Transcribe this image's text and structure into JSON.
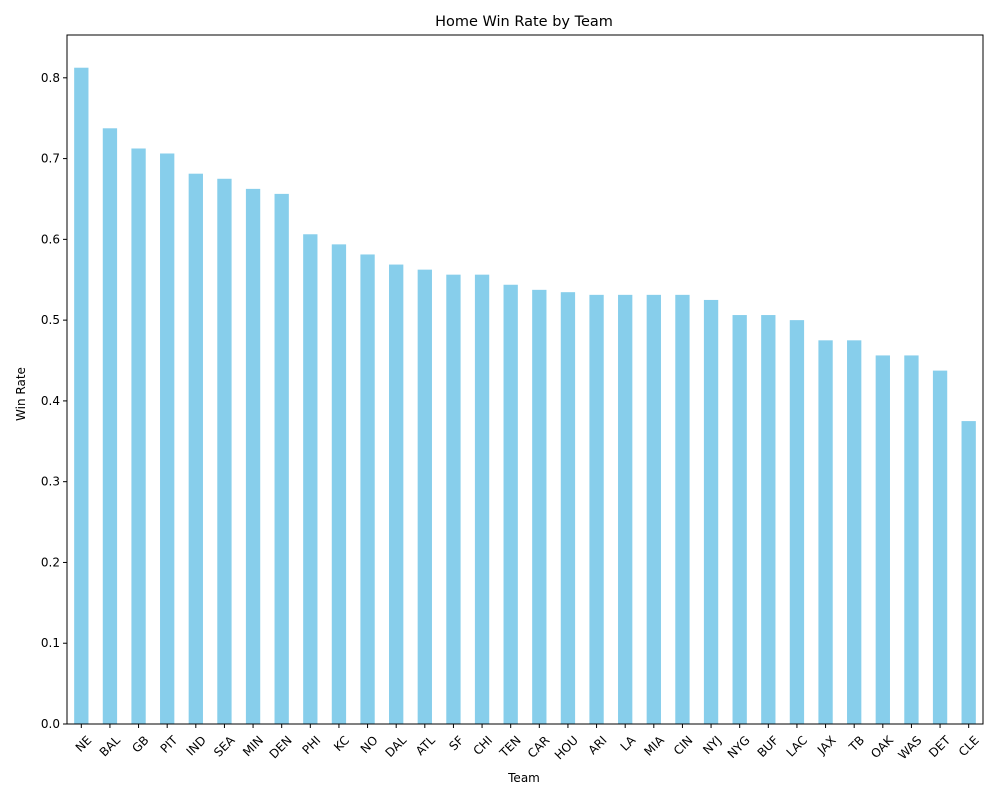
{
  "chart_data": {
    "type": "bar",
    "title": "Home Win Rate by Team",
    "xlabel": "Team",
    "ylabel": "Win Rate",
    "ylim": [
      0,
      0.853
    ],
    "yticks": [
      0.0,
      0.1,
      0.2,
      0.3,
      0.4,
      0.5,
      0.6,
      0.7,
      0.8
    ],
    "ytick_labels": [
      "0.0",
      "0.1",
      "0.2",
      "0.3",
      "0.4",
      "0.5",
      "0.6",
      "0.7",
      "0.8"
    ],
    "grid": false,
    "legend": "none",
    "bar_color": "#87ceeb",
    "categories": [
      "NE",
      "BAL",
      "GB",
      "PIT",
      "IND",
      "SEA",
      "MIN",
      "DEN",
      "PHI",
      "KC",
      "NO",
      "DAL",
      "ATL",
      "SF",
      "CHI",
      "TEN",
      "CAR",
      "HOU",
      "ARI",
      "LA",
      "MIA",
      "CIN",
      "NYJ",
      "NYG",
      "BUF",
      "LAC",
      "JAX",
      "TB",
      "OAK",
      "WAS",
      "DET",
      "CLE"
    ],
    "values": [
      0.8125,
      0.7375,
      0.7125,
      0.7063,
      0.6813,
      0.675,
      0.6625,
      0.6563,
      0.6063,
      0.5938,
      0.5813,
      0.5688,
      0.5625,
      0.5563,
      0.5563,
      0.5438,
      0.5375,
      0.5346,
      0.5313,
      0.5313,
      0.5313,
      0.5313,
      0.525,
      0.5063,
      0.5063,
      0.5,
      0.475,
      0.475,
      0.4563,
      0.4563,
      0.4375,
      0.375
    ]
  }
}
